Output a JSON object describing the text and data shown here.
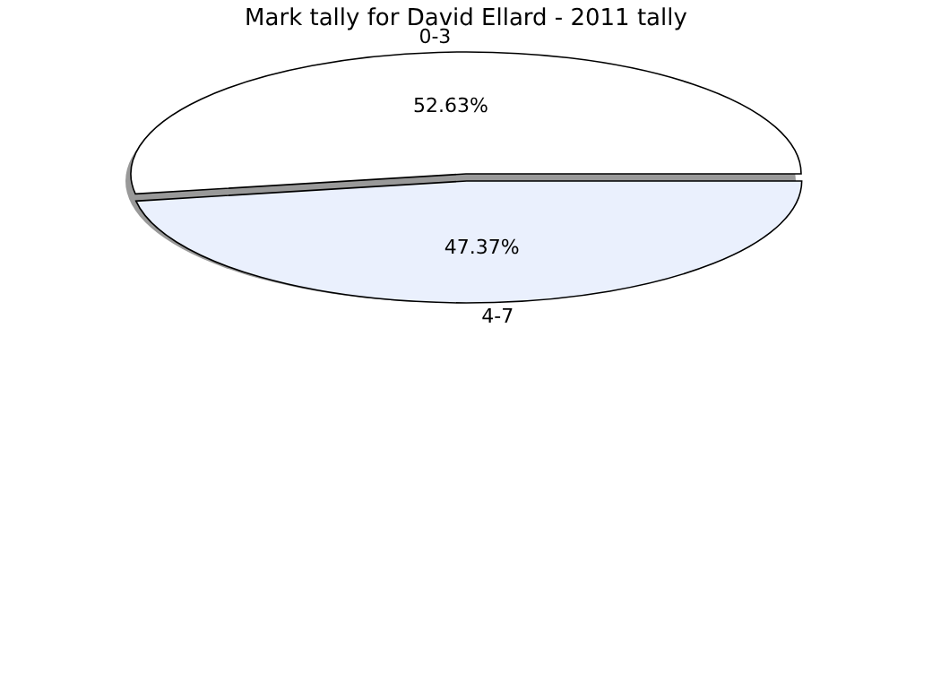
{
  "chart_data": {
    "type": "pie",
    "title": "Mark tally for David Ellard - 2011 tally",
    "categories": [
      "0-3",
      "4-7"
    ],
    "values": [
      52.63,
      47.37
    ],
    "colors": [
      "#ffffff",
      "#eaf0fd"
    ],
    "value_labels": [
      "52.63%",
      "47.37%"
    ]
  }
}
